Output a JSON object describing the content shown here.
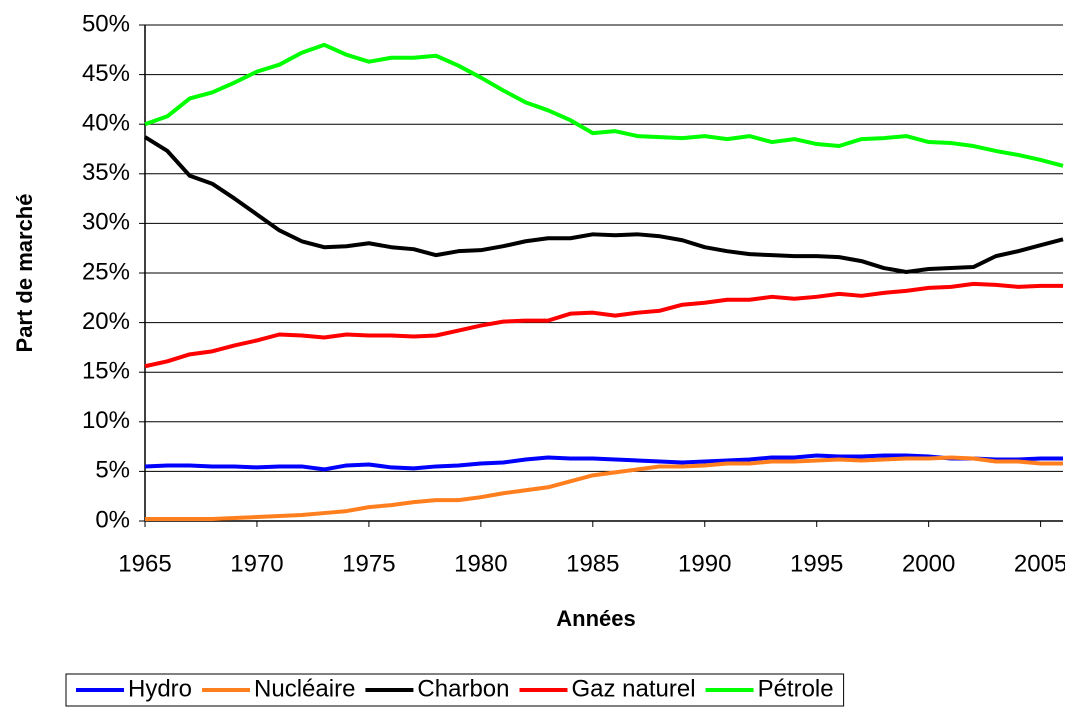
{
  "chart_data": {
    "type": "line",
    "x_label": "Années",
    "y_label": "Part de marché",
    "x": [
      1965,
      1966,
      1967,
      1968,
      1969,
      1970,
      1971,
      1972,
      1973,
      1974,
      1975,
      1976,
      1977,
      1978,
      1979,
      1980,
      1981,
      1982,
      1983,
      1984,
      1985,
      1986,
      1987,
      1988,
      1989,
      1990,
      1991,
      1992,
      1993,
      1994,
      1995,
      1996,
      1997,
      1998,
      1999,
      2000,
      2001,
      2002,
      2003,
      2004,
      2005,
      2006
    ],
    "xlim": [
      1965,
      2006
    ],
    "xticks": [
      1965,
      1970,
      1975,
      1980,
      1985,
      1990,
      1995,
      2000,
      2005
    ],
    "ylim": [
      0,
      50
    ],
    "yticks": [
      {
        "value": 0,
        "label": "0%"
      },
      {
        "value": 5,
        "label": "5%"
      },
      {
        "value": 10,
        "label": "10%"
      },
      {
        "value": 15,
        "label": "15%"
      },
      {
        "value": 20,
        "label": "20%"
      },
      {
        "value": 25,
        "label": "25%"
      },
      {
        "value": 30,
        "label": "30%"
      },
      {
        "value": 35,
        "label": "35%"
      },
      {
        "value": 40,
        "label": "40%"
      },
      {
        "value": 45,
        "label": "45%"
      },
      {
        "value": 50,
        "label": "50%"
      }
    ],
    "grid": true,
    "legend": "bottom",
    "series": [
      {
        "name": "Hydro",
        "color": "#0000ff",
        "values": [
          5.5,
          5.6,
          5.6,
          5.5,
          5.5,
          5.4,
          5.5,
          5.5,
          5.2,
          5.6,
          5.7,
          5.4,
          5.3,
          5.5,
          5.6,
          5.8,
          5.9,
          6.2,
          6.4,
          6.3,
          6.3,
          6.2,
          6.1,
          6.0,
          5.9,
          6.0,
          6.1,
          6.2,
          6.4,
          6.4,
          6.6,
          6.5,
          6.5,
          6.6,
          6.6,
          6.5,
          6.3,
          6.3,
          6.2,
          6.2,
          6.3,
          6.3
        ]
      },
      {
        "name": "Nucléaire",
        "color": "#ff7f1f",
        "values": [
          0.2,
          0.2,
          0.2,
          0.2,
          0.3,
          0.4,
          0.5,
          0.6,
          0.8,
          1.0,
          1.4,
          1.6,
          1.9,
          2.1,
          2.1,
          2.4,
          2.8,
          3.1,
          3.4,
          4.0,
          4.6,
          4.9,
          5.2,
          5.5,
          5.5,
          5.6,
          5.8,
          5.8,
          6.0,
          6.0,
          6.1,
          6.2,
          6.1,
          6.2,
          6.3,
          6.3,
          6.4,
          6.3,
          6.0,
          6.0,
          5.8,
          5.8
        ]
      },
      {
        "name": "Charbon",
        "color": "#000000",
        "values": [
          38.7,
          37.3,
          34.8,
          34.0,
          32.5,
          30.9,
          29.3,
          28.2,
          27.6,
          27.7,
          28.0,
          27.6,
          27.4,
          26.8,
          27.2,
          27.3,
          27.7,
          28.2,
          28.5,
          28.5,
          28.9,
          28.8,
          28.9,
          28.7,
          28.3,
          27.6,
          27.2,
          26.9,
          26.8,
          26.7,
          26.7,
          26.6,
          26.2,
          25.5,
          25.1,
          25.4,
          25.5,
          25.6,
          26.7,
          27.2,
          27.8,
          28.4
        ]
      },
      {
        "name": "Gaz naturel",
        "color": "#ff0000",
        "values": [
          15.6,
          16.1,
          16.8,
          17.1,
          17.7,
          18.2,
          18.8,
          18.7,
          18.5,
          18.8,
          18.7,
          18.7,
          18.6,
          18.7,
          19.2,
          19.7,
          20.1,
          20.2,
          20.2,
          20.9,
          21.0,
          20.7,
          21.0,
          21.2,
          21.8,
          22.0,
          22.3,
          22.3,
          22.6,
          22.4,
          22.6,
          22.9,
          22.7,
          23.0,
          23.2,
          23.5,
          23.6,
          23.9,
          23.8,
          23.6,
          23.7,
          23.7
        ]
      },
      {
        "name": "Pétrole",
        "color": "#00ff00",
        "values": [
          40.0,
          40.8,
          42.6,
          43.2,
          44.2,
          45.3,
          46.0,
          47.2,
          48.0,
          47.0,
          46.3,
          46.7,
          46.7,
          46.9,
          45.9,
          44.7,
          43.4,
          42.2,
          41.4,
          40.4,
          39.1,
          39.3,
          38.8,
          38.7,
          38.6,
          38.8,
          38.5,
          38.8,
          38.2,
          38.5,
          38.0,
          37.8,
          38.5,
          38.6,
          38.8,
          38.2,
          38.1,
          37.8,
          37.3,
          36.9,
          36.4,
          35.8
        ]
      }
    ]
  }
}
